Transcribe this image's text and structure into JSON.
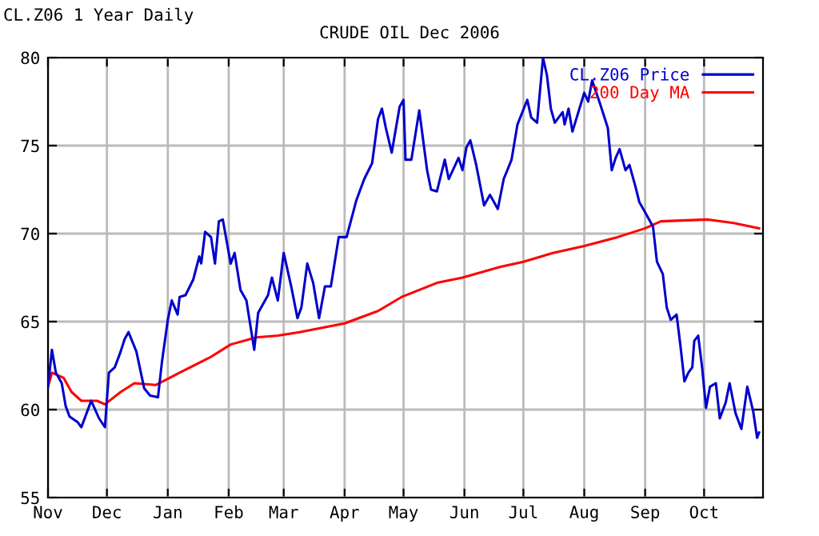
{
  "chart_data": {
    "type": "line",
    "title": "CRUDE OIL Dec 2006",
    "annotations": [
      "CL.Z06 1 Year Daily"
    ],
    "series": [
      {
        "name": "CL.Z06 Price",
        "color": "#0000cc",
        "x": [
          "2005-11-01",
          "2005-11-03",
          "2005-11-05",
          "2005-11-08",
          "2005-11-10",
          "2005-11-12",
          "2005-11-16",
          "2005-11-18",
          "2005-11-23",
          "2005-11-27",
          "2005-11-30",
          "2005-12-02",
          "2005-12-05",
          "2005-12-08",
          "2005-12-10",
          "2005-12-12",
          "2005-12-16",
          "2005-12-20",
          "2005-12-23",
          "2005-12-27",
          "2005-12-29",
          "2006-01-01",
          "2006-01-03",
          "2006-01-06",
          "2006-01-07",
          "2006-01-10",
          "2006-01-14",
          "2006-01-17",
          "2006-01-18",
          "2006-01-20",
          "2006-01-23",
          "2006-01-25",
          "2006-01-27",
          "2006-01-29",
          "2006-02-02",
          "2006-02-04",
          "2006-02-07",
          "2006-02-10",
          "2006-02-14",
          "2006-02-16",
          "2006-02-21",
          "2006-02-23",
          "2006-02-26",
          "2006-03-01",
          "2006-03-05",
          "2006-03-08",
          "2006-03-10",
          "2006-03-13",
          "2006-03-16",
          "2006-03-19",
          "2006-03-22",
          "2006-03-25",
          "2006-03-29",
          "2006-04-02",
          "2006-04-07",
          "2006-04-11",
          "2006-04-15",
          "2006-04-18",
          "2006-04-20",
          "2006-04-22",
          "2006-04-25",
          "2006-04-29",
          "2006-05-01",
          "2006-05-02",
          "2006-05-05",
          "2006-05-09",
          "2006-05-13",
          "2006-05-15",
          "2006-05-18",
          "2006-05-22",
          "2006-05-24",
          "2006-05-29",
          "2006-05-31",
          "2006-06-02",
          "2006-06-04",
          "2006-06-07",
          "2006-06-11",
          "2006-06-14",
          "2006-06-18",
          "2006-06-21",
          "2006-06-25",
          "2006-06-28",
          "2006-07-03",
          "2006-07-05",
          "2006-07-08",
          "2006-07-11",
          "2006-07-13",
          "2006-07-15",
          "2006-07-17",
          "2006-07-21",
          "2006-07-22",
          "2006-07-24",
          "2006-07-26",
          "2006-08-01",
          "2006-08-03",
          "2006-08-05",
          "2006-08-09",
          "2006-08-13",
          "2006-08-15",
          "2006-08-17",
          "2006-08-19",
          "2006-08-22",
          "2006-08-24",
          "2006-08-27",
          "2006-08-29",
          "2006-09-01",
          "2006-09-05",
          "2006-09-07",
          "2006-09-10",
          "2006-09-12",
          "2006-09-14",
          "2006-09-17",
          "2006-09-19",
          "2006-09-21",
          "2006-09-23",
          "2006-09-25",
          "2006-09-26",
          "2006-09-28",
          "2006-09-30",
          "2006-10-02",
          "2006-10-04",
          "2006-10-07",
          "2006-10-09",
          "2006-10-12",
          "2006-10-14",
          "2006-10-17",
          "2006-10-20",
          "2006-10-23",
          "2006-10-26",
          "2006-10-28",
          "2006-10-29"
        ],
        "values": [
          61.3,
          63.4,
          62.1,
          61.5,
          60.2,
          59.6,
          59.3,
          59.0,
          60.5,
          59.5,
          59.0,
          62.1,
          62.4,
          63.3,
          64.0,
          64.4,
          63.3,
          61.2,
          60.8,
          60.7,
          62.7,
          65.1,
          66.2,
          65.4,
          66.4,
          66.5,
          67.4,
          68.7,
          68.3,
          70.1,
          69.8,
          68.3,
          70.7,
          70.8,
          68.3,
          68.9,
          66.8,
          66.2,
          63.4,
          65.5,
          66.5,
          67.5,
          66.2,
          68.9,
          66.9,
          65.2,
          65.8,
          68.3,
          67.2,
          65.2,
          67.0,
          67.0,
          69.8,
          69.8,
          71.9,
          73.1,
          74.0,
          76.5,
          77.1,
          76.0,
          74.6,
          77.2,
          77.6,
          74.2,
          74.2,
          77.0,
          73.6,
          72.5,
          72.4,
          74.2,
          73.1,
          74.3,
          73.6,
          74.9,
          75.3,
          73.9,
          71.6,
          72.2,
          71.4,
          73.1,
          74.2,
          76.2,
          77.6,
          76.6,
          76.3,
          80.0,
          79.0,
          77.1,
          76.3,
          76.9,
          76.2,
          77.1,
          75.8,
          78.0,
          77.5,
          78.7,
          77.4,
          76.0,
          73.6,
          74.3,
          74.8,
          73.6,
          73.9,
          72.7,
          71.8,
          71.2,
          70.4,
          68.4,
          67.7,
          65.8,
          65.1,
          65.4,
          63.6,
          61.6,
          62.1,
          62.4,
          63.9,
          64.2,
          62.4,
          60.1,
          61.3,
          61.5,
          59.5,
          60.4,
          61.5,
          59.8,
          58.9,
          61.3,
          59.9,
          58.4,
          58.7
        ]
      },
      {
        "name": "200 Day MA",
        "color": "#ff0000",
        "x": [
          "2005-11-01",
          "2005-11-03",
          "2005-11-09",
          "2005-11-13",
          "2005-11-18",
          "2005-11-26",
          "2005-11-30",
          "2005-12-08",
          "2005-12-15",
          "2005-12-26",
          "2006-01-07",
          "2006-01-23",
          "2006-02-02",
          "2006-02-15",
          "2006-02-26",
          "2006-03-09",
          "2006-04-01",
          "2006-04-18",
          "2006-04-30",
          "2006-05-18",
          "2006-05-31",
          "2006-06-19",
          "2006-07-01",
          "2006-07-16",
          "2006-08-01",
          "2006-08-18",
          "2006-09-01",
          "2006-09-09",
          "2006-10-03",
          "2006-10-16",
          "2006-10-29"
        ],
        "values": [
          61.3,
          62.1,
          61.8,
          61.0,
          60.5,
          60.5,
          60.3,
          61.0,
          61.5,
          61.4,
          62.1,
          63.0,
          63.7,
          64.1,
          64.2,
          64.4,
          64.9,
          65.6,
          66.4,
          67.2,
          67.5,
          68.1,
          68.4,
          68.9,
          69.3,
          69.8,
          70.3,
          70.7,
          70.8,
          70.6,
          70.3
        ]
      }
    ],
    "xlim": [
      "2005-11-01",
      "2006-10-31"
    ],
    "xticks": [
      {
        "value": "2005-11-01",
        "label": "Nov"
      },
      {
        "value": "2005-12-01",
        "label": "Dec"
      },
      {
        "value": "2006-01-01",
        "label": "Jan"
      },
      {
        "value": "2006-02-01",
        "label": "Feb"
      },
      {
        "value": "2006-03-01",
        "label": "Mar"
      },
      {
        "value": "2006-04-01",
        "label": "Apr"
      },
      {
        "value": "2006-05-01",
        "label": "May"
      },
      {
        "value": "2006-06-01",
        "label": "Jun"
      },
      {
        "value": "2006-07-01",
        "label": "Jul"
      },
      {
        "value": "2006-08-01",
        "label": "Aug"
      },
      {
        "value": "2006-09-01",
        "label": "Sep"
      },
      {
        "value": "2006-10-01",
        "label": "Oct"
      }
    ],
    "ylim": [
      55,
      80
    ],
    "yticks": [
      55,
      60,
      65,
      70,
      75,
      80
    ],
    "grid": true,
    "legend": "top right",
    "line_style": "solid",
    "marker": "none"
  }
}
